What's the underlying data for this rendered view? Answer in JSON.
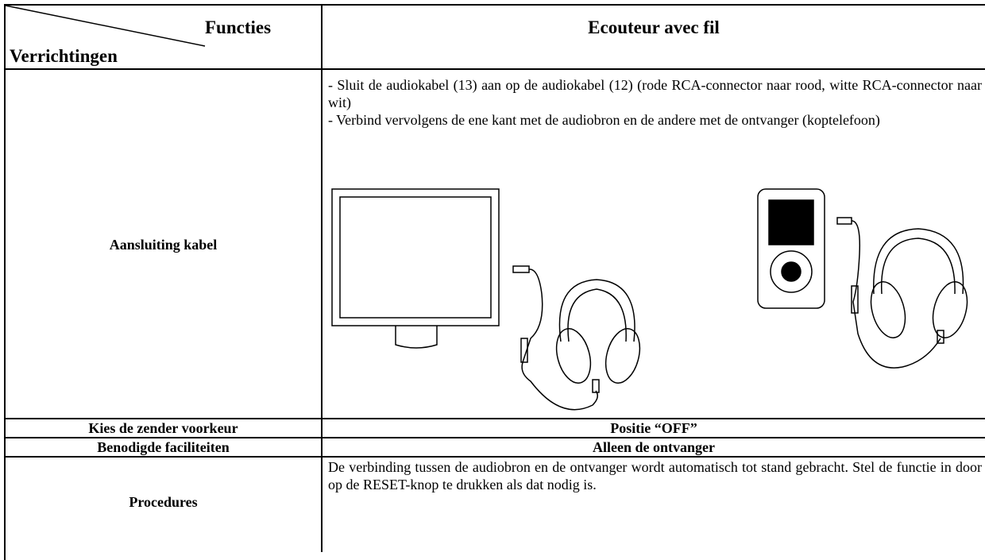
{
  "header": {
    "corner_top": "Functies",
    "corner_bottom": "Verrichtingen",
    "column": "Ecouteur avec fil"
  },
  "rows": [
    {
      "label": "Aansluiting kabel",
      "content": [
        "- Sluit de audiokabel (13) aan op de audiokabel (12) (rode RCA-connector naar rood, witte RCA-connector naar wit)",
        "- Verbind vervolgens de ene kant met de audiobron en de andere met de ontvanger (koptelefoon)"
      ]
    },
    {
      "label": "Kies de zender voorkeur",
      "content": [
        "Positie “OFF”"
      ]
    },
    {
      "label": "Benodigde faciliteiten",
      "content": [
        "Alleen de ontvanger"
      ]
    },
    {
      "label": "Procedures",
      "content": [
        "De verbinding tussen de audiobron en de ontvanger wordt automatisch tot stand gebracht. Stel de functie in door op de RESET-knop te drukken als dat nodig is."
      ]
    }
  ]
}
